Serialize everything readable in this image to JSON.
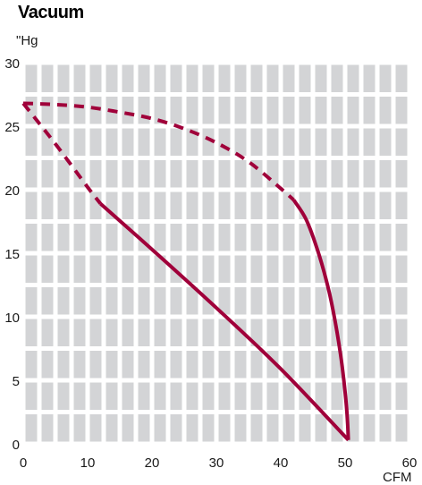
{
  "chart_data": {
    "type": "line",
    "title": "Vacuum",
    "ylabel": "\"Hg",
    "xlabel": "CFM",
    "xlim": [
      0,
      60
    ],
    "ylim": [
      0,
      30
    ],
    "x_ticks": [
      0,
      10,
      20,
      30,
      40,
      50,
      60
    ],
    "y_ticks": [
      0,
      5,
      10,
      15,
      20,
      25,
      30
    ],
    "grid": true,
    "legend": "none",
    "colors": {
      "curve": "#a0003a",
      "grid_cell": "#d3d4d6",
      "grid_line": "#ffffff"
    },
    "series": [
      {
        "line_style": "dashed",
        "x": [
          0,
          5,
          10,
          15,
          20,
          25,
          30,
          35,
          40,
          42
        ],
        "y": [
          26.8,
          26.7,
          26.5,
          26.1,
          25.6,
          24.8,
          23.7,
          22.2,
          20.1,
          19.2
        ]
      },
      {
        "line_style": "solid",
        "x": [
          42,
          44,
          46,
          47.5,
          48.5,
          49.3,
          49.8,
          50.2,
          50.4,
          50.5
        ],
        "y": [
          19.2,
          17.6,
          14.8,
          12.0,
          9.5,
          7.0,
          5.0,
          3.0,
          1.5,
          0.3
        ]
      },
      {
        "line_style": "dashed",
        "x": [
          0,
          5,
          10,
          12
        ],
        "y": [
          26.8,
          23.6,
          20.2,
          18.9
        ]
      },
      {
        "line_style": "solid",
        "x": [
          12,
          20,
          30,
          40,
          50.5
        ],
        "y": [
          18.9,
          15.3,
          10.7,
          5.9,
          0.3
        ]
      }
    ]
  }
}
